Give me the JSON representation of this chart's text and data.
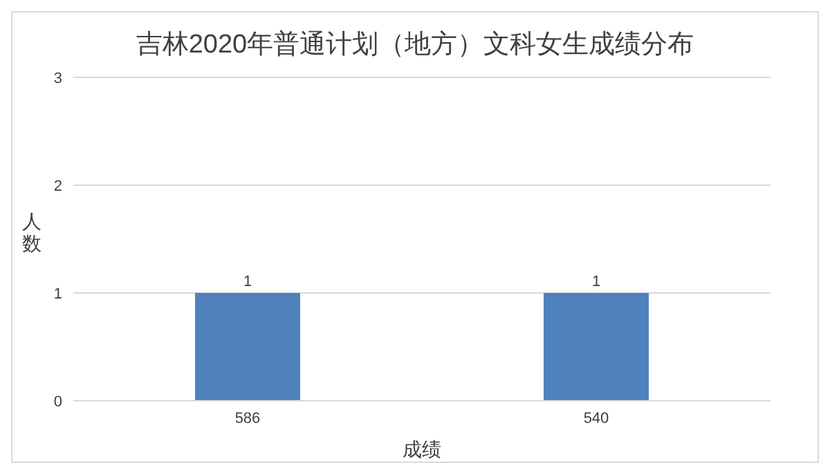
{
  "chart_data": {
    "type": "bar",
    "title": "吉林2020年普通计划（地方）文科女生成绩分布",
    "xlabel": "成绩",
    "ylabel": "人数",
    "categories": [
      "586",
      "540"
    ],
    "values": [
      1,
      1
    ],
    "color": "#4f81bd",
    "ylim": [
      0,
      3
    ],
    "yticks": [
      0,
      1,
      2,
      3
    ],
    "grid": "y",
    "data_labels": true,
    "legend": false
  }
}
